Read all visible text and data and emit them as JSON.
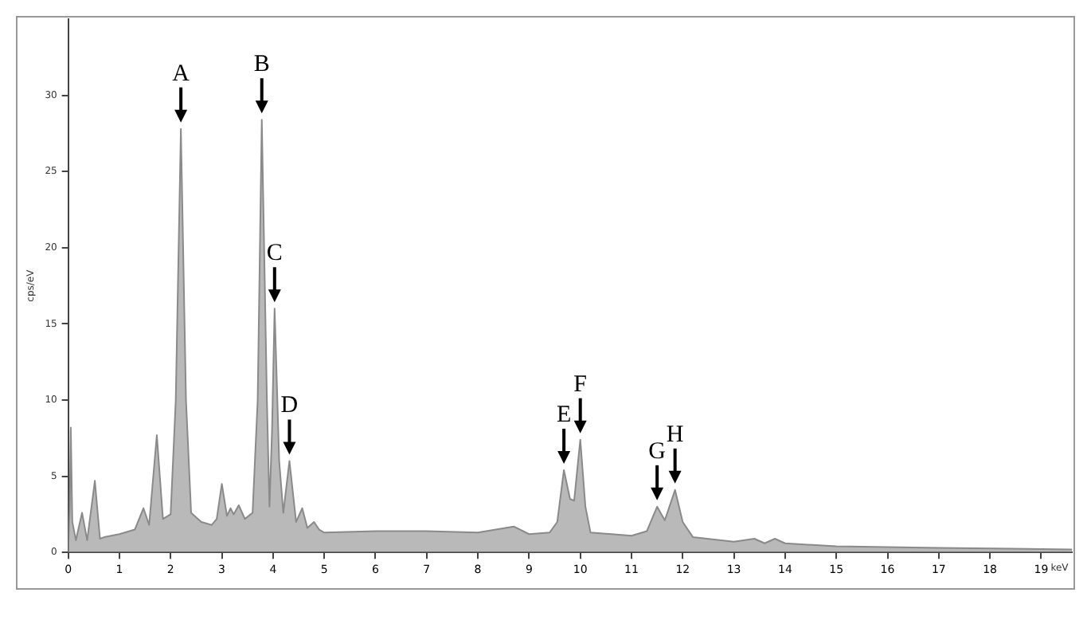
{
  "chart_data": {
    "type": "area",
    "xlabel": "keV",
    "ylabel": "cps/eV",
    "xlim": [
      0,
      19.6
    ],
    "ylim": [
      0,
      35
    ],
    "xticks": [
      0,
      1,
      2,
      3,
      4,
      5,
      6,
      7,
      8,
      9,
      10,
      11,
      12,
      13,
      14,
      15,
      16,
      17,
      18,
      19
    ],
    "yticks": [
      0,
      5,
      10,
      15,
      20,
      25,
      30
    ],
    "grid": false,
    "legend": false,
    "marker": "none",
    "series": [
      {
        "color": "#8a8a8a",
        "x": [
          0,
          0.03,
          0.05,
          0.08,
          0.15,
          0.27,
          0.37,
          0.52,
          0.62,
          0.7,
          1.0,
          1.3,
          1.47,
          1.58,
          1.73,
          1.85,
          2.0,
          2.1,
          2.2,
          2.3,
          2.4,
          2.6,
          2.8,
          2.9,
          3.0,
          3.1,
          3.17,
          3.23,
          3.33,
          3.45,
          3.6,
          3.7,
          3.78,
          3.88,
          3.93,
          3.98,
          4.03,
          4.12,
          4.2,
          4.32,
          4.45,
          4.57,
          4.67,
          4.8,
          4.9,
          5.0,
          6.0,
          7.0,
          8.0,
          8.7,
          9.0,
          9.4,
          9.55,
          9.68,
          9.8,
          9.88,
          10.0,
          10.1,
          10.2,
          11.0,
          11.3,
          11.5,
          11.65,
          11.85,
          12.0,
          12.2,
          13.0,
          13.4,
          13.6,
          13.8,
          14.0,
          15.0,
          17.0,
          19.6
        ],
        "values": [
          0,
          3,
          8.2,
          2,
          0.8,
          2.6,
          0.8,
          4.7,
          0.9,
          1.0,
          1.2,
          1.5,
          2.9,
          1.8,
          7.7,
          2.2,
          2.5,
          10,
          27.8,
          10,
          2.6,
          2.0,
          1.8,
          2.2,
          4.5,
          2.4,
          2.9,
          2.5,
          3.1,
          2.2,
          2.6,
          10,
          28.4,
          10,
          3.0,
          8,
          16.0,
          6,
          2.6,
          6.0,
          2.0,
          2.9,
          1.6,
          2.0,
          1.5,
          1.3,
          1.4,
          1.4,
          1.3,
          1.7,
          1.2,
          1.3,
          2.0,
          5.4,
          3.5,
          3.4,
          7.4,
          3,
          1.3,
          1.1,
          1.4,
          3.0,
          2.1,
          4.1,
          2.0,
          1.0,
          0.7,
          0.9,
          0.6,
          0.9,
          0.6,
          0.4,
          0.3,
          0.2
        ]
      }
    ],
    "annotations": [
      {
        "text": "A",
        "x": 2.2,
        "y": 27.8
      },
      {
        "text": "B",
        "x": 3.78,
        "y": 28.4
      },
      {
        "text": "C",
        "x": 4.03,
        "y": 16.0
      },
      {
        "text": "D",
        "x": 4.32,
        "y": 6.0
      },
      {
        "text": "E",
        "x": 9.68,
        "y": 5.4
      },
      {
        "text": "F",
        "x": 10.0,
        "y": 7.4
      },
      {
        "text": "G",
        "x": 11.5,
        "y": 3.0
      },
      {
        "text": "H",
        "x": 11.85,
        "y": 4.1
      }
    ]
  }
}
